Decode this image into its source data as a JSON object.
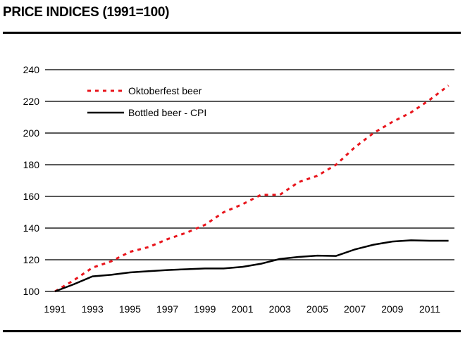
{
  "chart_data": {
    "type": "line",
    "title": "PRICE INDICES (1991=100)",
    "xlabel": "",
    "ylabel": "",
    "x": [
      1991,
      1992,
      1993,
      1994,
      1995,
      1996,
      1997,
      1998,
      1999,
      2000,
      2001,
      2002,
      2003,
      2004,
      2005,
      2006,
      2007,
      2008,
      2009,
      2010,
      2011,
      2012
    ],
    "xticks": [
      "1991",
      "1993",
      "1995",
      "1997",
      "1999",
      "2001",
      "2003",
      "2005",
      "2007",
      "2009",
      "2011"
    ],
    "yticks": [
      "100",
      "120",
      "140",
      "160",
      "180",
      "200",
      "220",
      "240"
    ],
    "ylim": [
      100,
      240
    ],
    "grid": true,
    "legend_placement": "top-left",
    "series": [
      {
        "name": "Oktoberfest beer",
        "color": "#e8141b",
        "style": "dotted",
        "values": [
          100,
          107,
          115,
          119,
          125,
          128,
          133,
          137,
          142,
          150,
          155,
          161,
          161,
          169,
          173,
          180,
          191,
          200,
          207,
          213,
          221,
          230
        ]
      },
      {
        "name": "Bottled beer - CPI",
        "color": "#000000",
        "style": "solid",
        "values": [
          100,
          104.5,
          109.5,
          110.5,
          112,
          112.8,
          113.5,
          114,
          114.5,
          114.5,
          115.5,
          117.5,
          120.5,
          121.8,
          122.6,
          122.4,
          126.5,
          129.5,
          131.5,
          132.3,
          132,
          132
        ]
      }
    ]
  }
}
